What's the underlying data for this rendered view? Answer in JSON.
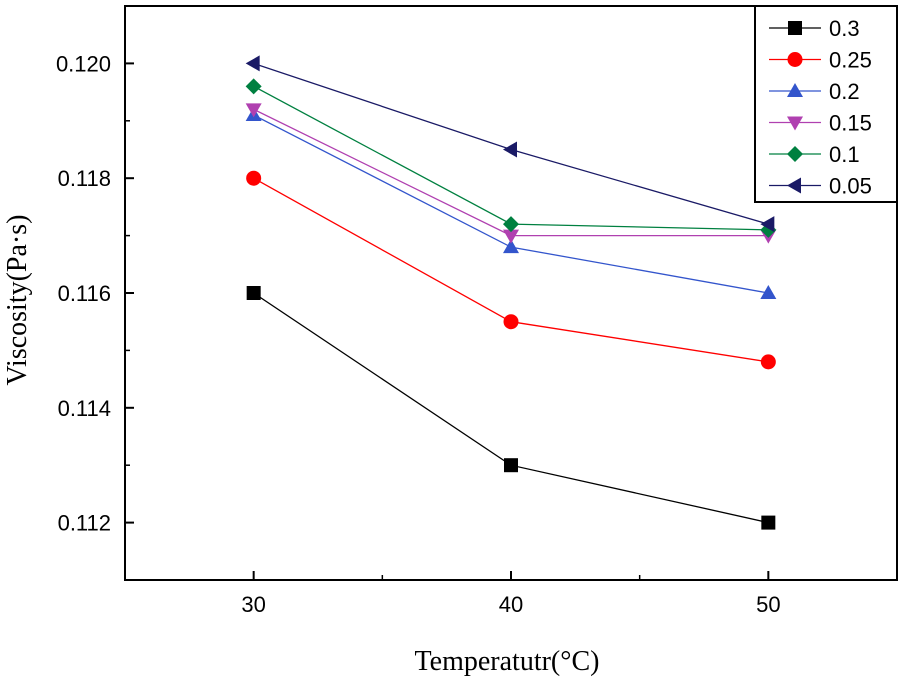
{
  "chart_data": {
    "type": "line",
    "title": "",
    "xlabel": "Temperatutr(°C)",
    "ylabel": "Viscosity(Pa·s)",
    "xlim": [
      25,
      55
    ],
    "ylim": [
      0.111,
      0.121
    ],
    "x_ticks": [
      30,
      40,
      50
    ],
    "x_tick_labels": [
      "30",
      "40",
      "50"
    ],
    "y_ticks": [
      0.112,
      0.114,
      0.116,
      0.118,
      0.12
    ],
    "y_tick_labels": [
      "0.112",
      "0.114",
      "0.116",
      "0.118",
      "0.120"
    ],
    "grid": false,
    "legend_position": "top-right",
    "x": [
      30,
      40,
      50
    ],
    "series": [
      {
        "name": "0.3",
        "color": "#000000",
        "marker": "square",
        "values": [
          0.116,
          0.113,
          0.112
        ]
      },
      {
        "name": "0.25",
        "color": "#ff0000",
        "marker": "circle",
        "values": [
          0.118,
          0.1155,
          0.1148
        ]
      },
      {
        "name": "0.2",
        "color": "#3355cc",
        "marker": "triangle-up",
        "values": [
          0.1191,
          0.1168,
          0.116
        ]
      },
      {
        "name": "0.15",
        "color": "#b040b0",
        "marker": "triangle-down",
        "values": [
          0.1192,
          0.117,
          0.117
        ]
      },
      {
        "name": "0.1",
        "color": "#008040",
        "marker": "diamond",
        "values": [
          0.1196,
          0.1172,
          0.1171
        ]
      },
      {
        "name": "0.05",
        "color": "#1a1a66",
        "marker": "triangle-left",
        "values": [
          0.12,
          0.1185,
          0.1172
        ]
      }
    ]
  }
}
